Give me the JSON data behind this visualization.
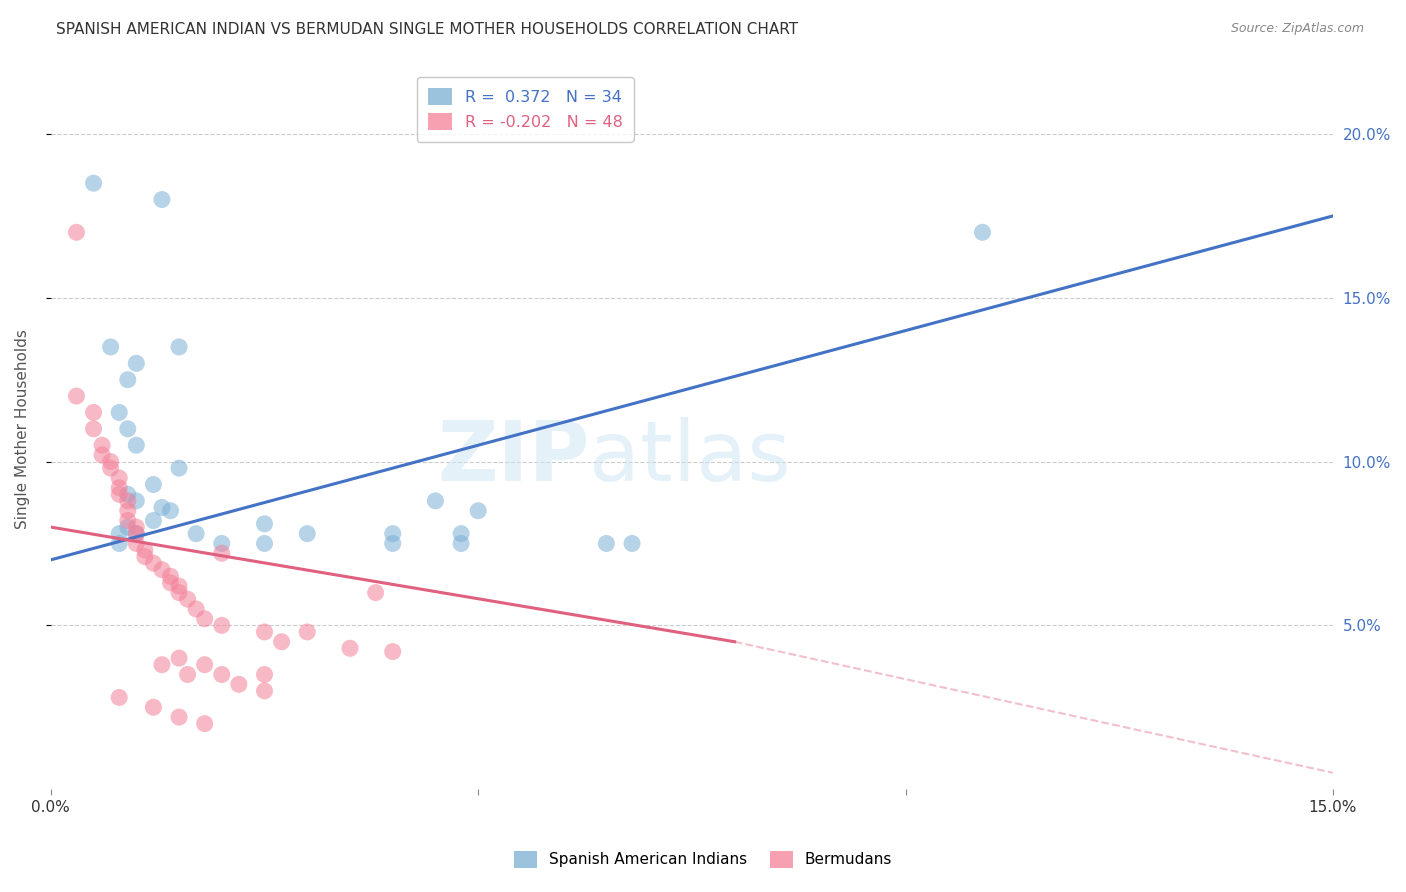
{
  "title": "SPANISH AMERICAN INDIAN VS BERMUDAN SINGLE MOTHER HOUSEHOLDS CORRELATION CHART",
  "source": "Source: ZipAtlas.com",
  "ylabel": "Single Mother Households",
  "legend_blue": "R =  0.372   N = 34",
  "legend_pink": "R = -0.202   N = 48",
  "legend_blue_label": "Spanish American Indians",
  "legend_pink_label": "Bermudans",
  "blue_scatter": [
    [
      0.5,
      18.5
    ],
    [
      1.3,
      18.0
    ],
    [
      0.7,
      13.5
    ],
    [
      1.0,
      13.0
    ],
    [
      0.8,
      11.5
    ],
    [
      0.9,
      12.5
    ],
    [
      1.5,
      13.5
    ],
    [
      0.9,
      11.0
    ],
    [
      1.0,
      10.5
    ],
    [
      1.5,
      9.8
    ],
    [
      1.2,
      9.3
    ],
    [
      0.9,
      9.0
    ],
    [
      1.0,
      8.8
    ],
    [
      1.3,
      8.6
    ],
    [
      1.4,
      8.5
    ],
    [
      1.2,
      8.2
    ],
    [
      0.9,
      8.0
    ],
    [
      2.5,
      8.1
    ],
    [
      0.8,
      7.8
    ],
    [
      0.8,
      7.5
    ],
    [
      1.0,
      7.8
    ],
    [
      1.7,
      7.8
    ],
    [
      3.0,
      7.8
    ],
    [
      4.0,
      7.8
    ],
    [
      4.8,
      7.8
    ],
    [
      2.0,
      7.5
    ],
    [
      2.5,
      7.5
    ],
    [
      4.0,
      7.5
    ],
    [
      4.8,
      7.5
    ],
    [
      6.5,
      7.5
    ],
    [
      6.8,
      7.5
    ],
    [
      4.5,
      8.8
    ],
    [
      5.0,
      8.5
    ],
    [
      10.9,
      17.0
    ]
  ],
  "pink_scatter": [
    [
      0.3,
      17.0
    ],
    [
      0.3,
      12.0
    ],
    [
      0.5,
      11.5
    ],
    [
      0.5,
      11.0
    ],
    [
      0.6,
      10.5
    ],
    [
      0.6,
      10.2
    ],
    [
      0.7,
      10.0
    ],
    [
      0.7,
      9.8
    ],
    [
      0.8,
      9.5
    ],
    [
      0.8,
      9.2
    ],
    [
      0.8,
      9.0
    ],
    [
      0.9,
      8.8
    ],
    [
      0.9,
      8.5
    ],
    [
      0.9,
      8.2
    ],
    [
      1.0,
      8.0
    ],
    [
      1.0,
      7.8
    ],
    [
      1.0,
      7.5
    ],
    [
      1.1,
      7.3
    ],
    [
      1.1,
      7.1
    ],
    [
      1.2,
      6.9
    ],
    [
      1.3,
      6.7
    ],
    [
      1.4,
      6.5
    ],
    [
      1.4,
      6.3
    ],
    [
      1.5,
      6.2
    ],
    [
      1.5,
      6.0
    ],
    [
      1.6,
      5.8
    ],
    [
      1.7,
      5.5
    ],
    [
      1.8,
      5.2
    ],
    [
      2.0,
      5.0
    ],
    [
      2.0,
      7.2
    ],
    [
      2.5,
      4.8
    ],
    [
      2.7,
      4.5
    ],
    [
      3.0,
      4.8
    ],
    [
      3.5,
      4.3
    ],
    [
      3.8,
      6.0
    ],
    [
      4.0,
      4.2
    ],
    [
      1.5,
      4.0
    ],
    [
      1.8,
      3.8
    ],
    [
      2.0,
      3.5
    ],
    [
      2.2,
      3.2
    ],
    [
      2.5,
      3.0
    ],
    [
      0.8,
      2.8
    ],
    [
      1.2,
      2.5
    ],
    [
      1.5,
      2.2
    ],
    [
      1.3,
      3.8
    ],
    [
      1.6,
      3.5
    ],
    [
      2.5,
      3.5
    ],
    [
      1.8,
      2.0
    ]
  ],
  "blue_line": [
    [
      0.0,
      7.0
    ],
    [
      15.0,
      17.5
    ]
  ],
  "pink_line_solid": [
    [
      0.0,
      8.0
    ],
    [
      8.0,
      4.5
    ]
  ],
  "pink_line_dash": [
    [
      8.0,
      4.5
    ],
    [
      15.0,
      0.5
    ]
  ],
  "xlim": [
    0.0,
    15.0
  ],
  "ylim": [
    0.0,
    22.0
  ],
  "yticks": [
    5.0,
    10.0,
    15.0,
    20.0
  ],
  "ytick_labels": [
    "5.0%",
    "10.0%",
    "15.0%",
    "20.0%"
  ],
  "xticks": [
    0.0,
    5.0,
    10.0,
    15.0
  ],
  "xtick_labels": [
    "0.0%",
    "",
    "",
    "15.0%"
  ],
  "blue_dot_color": "#7bafd4",
  "pink_dot_color": "#f48098",
  "blue_line_color": "#4472c4",
  "pink_line_color": "#e06080",
  "bg_color": "#ffffff",
  "grid_color": "#cccccc",
  "title_color": "#333333",
  "source_color": "#888888",
  "axis_label_color": "#555555",
  "right_tick_color": "#4472c4"
}
